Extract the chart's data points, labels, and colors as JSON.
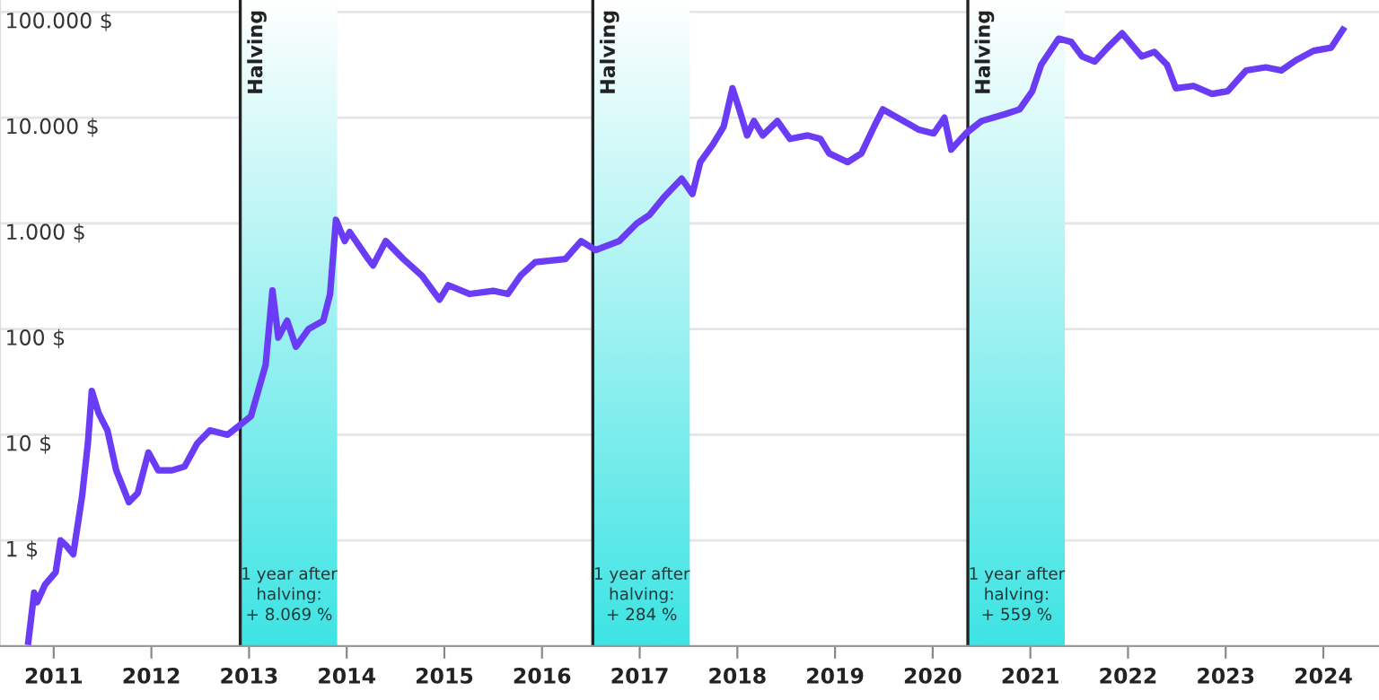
{
  "chart_data": {
    "type": "line",
    "log": "y",
    "x": [
      2010.74,
      2010.8,
      2010.83,
      2010.91,
      2011.02,
      2011.07,
      2011.13,
      2011.2,
      2011.29,
      2011.35,
      2011.39,
      2011.46,
      2011.55,
      2011.64,
      2011.77,
      2011.86,
      2011.97,
      2012.07,
      2012.21,
      2012.34,
      2012.47,
      2012.6,
      2012.78,
      2012.89,
      2013.02,
      2013.17,
      2013.24,
      2013.3,
      2013.39,
      2013.48,
      2013.61,
      2013.76,
      2013.83,
      2013.89,
      2013.98,
      2014.03,
      2014.22,
      2014.27,
      2014.4,
      2014.58,
      2014.77,
      2014.95,
      2015.04,
      2015.26,
      2015.5,
      2015.65,
      2015.78,
      2015.93,
      2016.24,
      2016.4,
      2016.55,
      2016.79,
      2016.97,
      2017.1,
      2017.25,
      2017.43,
      2017.54,
      2017.62,
      2017.75,
      2017.86,
      2017.95,
      2018.02,
      2018.1,
      2018.17,
      2018.26,
      2018.41,
      2018.54,
      2018.72,
      2018.85,
      2018.94,
      2019.13,
      2019.27,
      2019.4,
      2019.49,
      2019.64,
      2019.86,
      2020.01,
      2020.12,
      2020.19,
      2020.34,
      2020.5,
      2020.74,
      2020.89,
      2021.02,
      2021.11,
      2021.29,
      2021.42,
      2021.53,
      2021.66,
      2021.79,
      2021.94,
      2022.14,
      2022.27,
      2022.4,
      2022.49,
      2022.67,
      2022.86,
      2023.02,
      2023.21,
      2023.41,
      2023.57,
      2023.72,
      2023.9,
      2024.08,
      2024.2
    ],
    "series": [
      {
        "color": "#6a3cf5",
        "values": [
          0.11,
          0.32,
          0.26,
          0.38,
          0.5,
          1.0,
          0.89,
          0.74,
          2.6,
          8.3,
          26,
          16,
          11,
          4.6,
          2.3,
          2.8,
          6.8,
          4.6,
          4.6,
          5.0,
          8.3,
          11,
          10,
          12,
          15,
          46,
          232,
          83,
          120,
          68,
          100,
          120,
          215,
          1080,
          680,
          830,
          460,
          400,
          680,
          460,
          320,
          190,
          260,
          215,
          230,
          215,
          320,
          430,
          460,
          680,
          560,
          680,
          1000,
          1200,
          1780,
          2650,
          1900,
          3800,
          5600,
          8250,
          19000,
          12000,
          6800,
          9300,
          6800,
          9300,
          6300,
          6800,
          6300,
          4600,
          3800,
          4600,
          8250,
          12000,
          10000,
          7700,
          7100,
          10000,
          5000,
          7100,
          9300,
          10800,
          12000,
          17800,
          31600,
          56000,
          52000,
          38000,
          34000,
          46000,
          63000,
          38000,
          42000,
          31600,
          19000,
          20000,
          16800,
          17800,
          28000,
          30000,
          28000,
          35000,
          43000,
          46000,
          68000
        ]
      }
    ],
    "xlim": [
      2010.45,
      2024.57
    ],
    "xticks": [
      2011,
      2012,
      2013,
      2014,
      2015,
      2016,
      2017,
      2018,
      2019,
      2020,
      2021,
      2022,
      2023,
      2024
    ],
    "ylim": [
      0.1,
      130000
    ],
    "yticks": [
      {
        "value": 1,
        "label": "1 $"
      },
      {
        "value": 10,
        "label": "10 $"
      },
      {
        "value": 100,
        "label": "100 $"
      },
      {
        "value": 1000,
        "label": "1.000 $"
      },
      {
        "value": 10000,
        "label": "10.000 $"
      },
      {
        "value": 100000,
        "label": "100.000 $"
      }
    ],
    "grid": "y",
    "line_style": "solid",
    "marker": "none",
    "ref_lines": [
      {
        "axis": "x",
        "value": 2012.91,
        "label": "Halving",
        "color": "#222222"
      },
      {
        "axis": "x",
        "value": 2016.52,
        "label": "Halving",
        "color": "#222222"
      },
      {
        "axis": "x",
        "value": 2020.36,
        "label": "Halving",
        "color": "#222222"
      }
    ],
    "bands": [
      {
        "axis": "x",
        "from": 2012.91,
        "to": 2013.91,
        "label": "1 year after\nhalving:\n+ 8.069 %",
        "color": "#3ee4e4"
      },
      {
        "axis": "x",
        "from": 2016.52,
        "to": 2017.52,
        "label": "1 year after\nhalving:\n+ 284 %",
        "color": "#3ee4e4"
      },
      {
        "axis": "x",
        "from": 2020.36,
        "to": 2021.36,
        "label": "1 year after\nhalving:\n+ 559 %",
        "color": "#3ee4e4"
      }
    ]
  }
}
